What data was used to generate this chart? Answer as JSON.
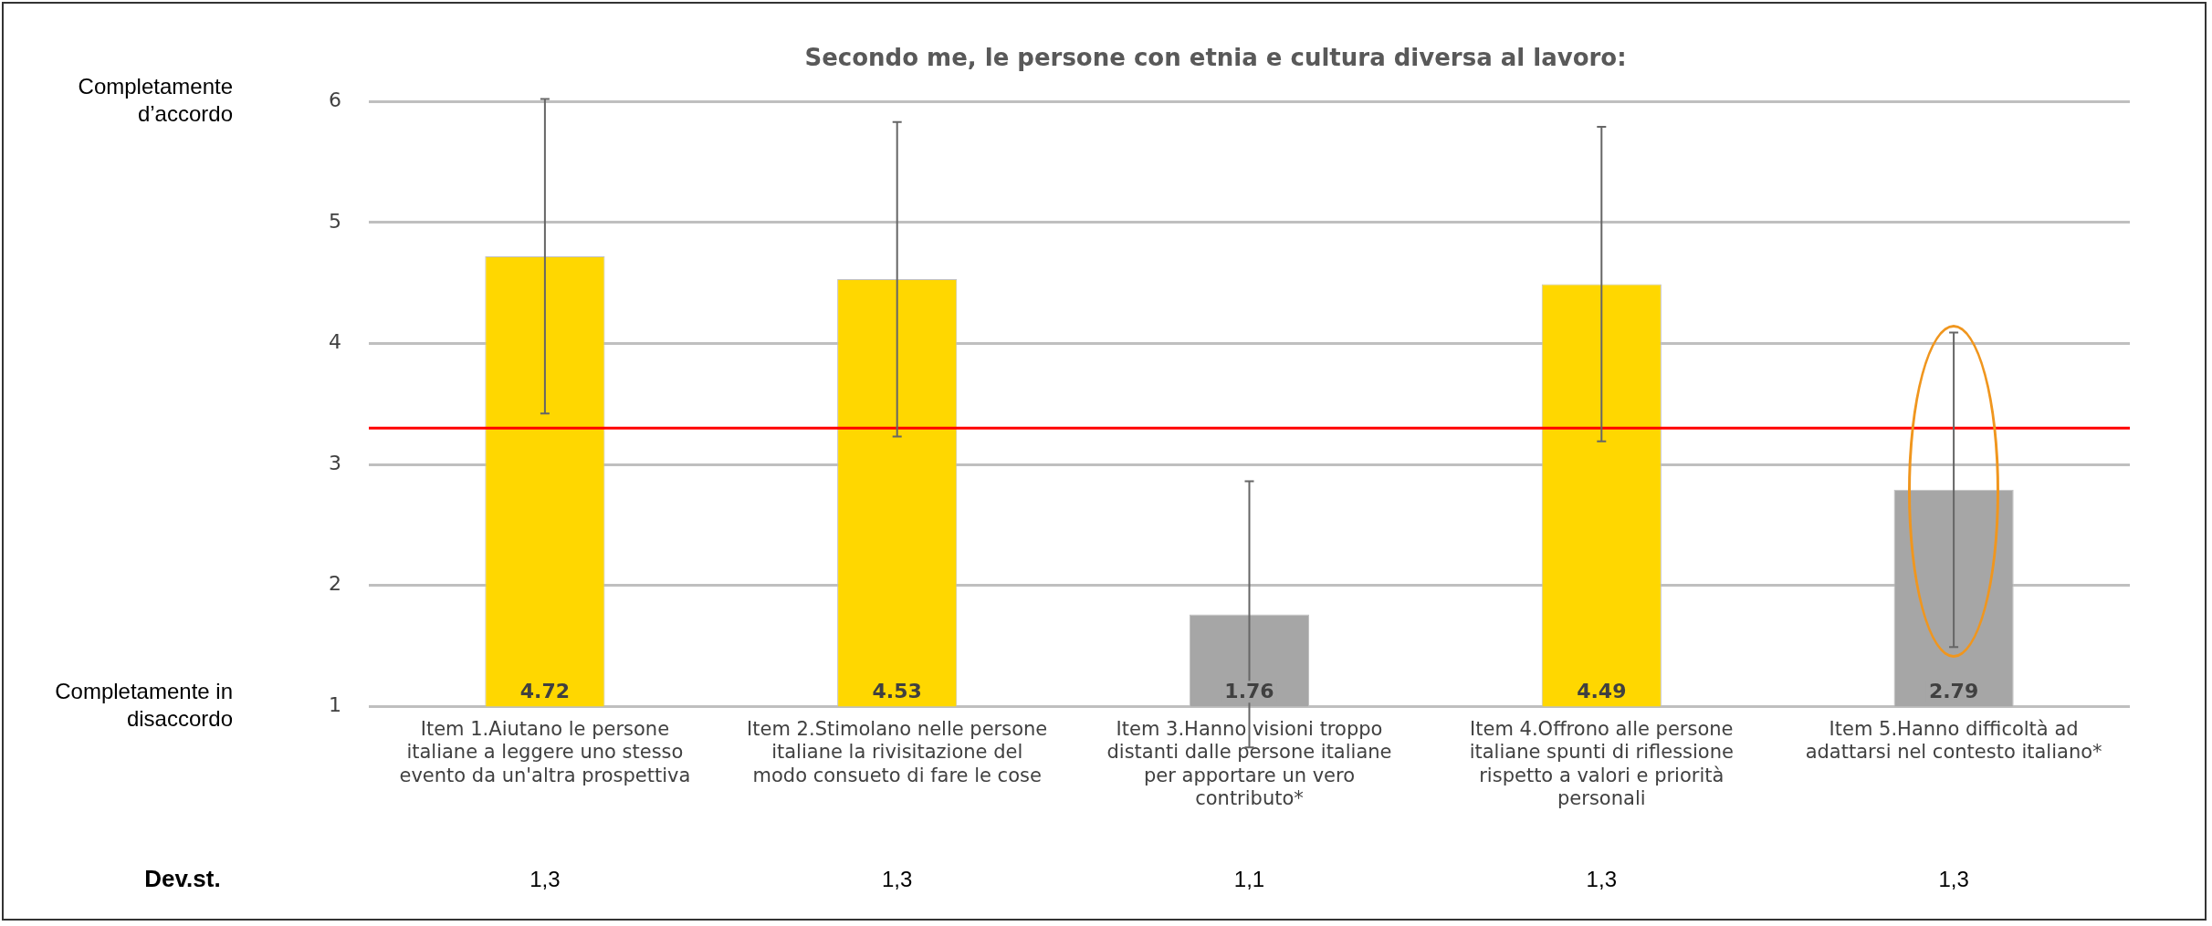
{
  "chart_data": {
    "type": "bar",
    "title": "Secondo me, le persone con etnia e cultura diversa al lavoro:",
    "categories": [
      "Item 1.Aiutano le persone italiane a leggere uno stesso evento da un'altra prospettiva",
      "Item 2.Stimolano nelle persone italiane la rivisitazione del modo consueto di fare le cose",
      "Item 3.Hanno visioni troppo distanti dalle persone italiane per apportare un vero contributo*",
      "Item 4.Offrono alle persone italiane spunti di riflessione rispetto a valori e priorità personali",
      "Item 5.Hanno difficoltà ad adattarsi nel contesto italiano*"
    ],
    "values": [
      4.72,
      4.53,
      1.76,
      4.49,
      2.79
    ],
    "colors": [
      "#ffd700",
      "#ffd700",
      "#a6a6a6",
      "#ffd700",
      "#a6a6a6"
    ],
    "errors": [
      1.3,
      1.3,
      1.1,
      1.3,
      1.3
    ],
    "data_labels": true,
    "ylim": [
      1,
      6
    ],
    "yticks": [
      1,
      2,
      3,
      4,
      5,
      6
    ],
    "grid": "y",
    "ref_lines": [
      {
        "axis": "y",
        "value": 3.3,
        "color": "#ff0000"
      }
    ],
    "annotations": [
      "Completamente d’accordo",
      "Completamente in disaccordo",
      "Dev.st.",
      "1,3",
      "1,3",
      "1,1",
      "1,3",
      "1,3"
    ]
  }
}
